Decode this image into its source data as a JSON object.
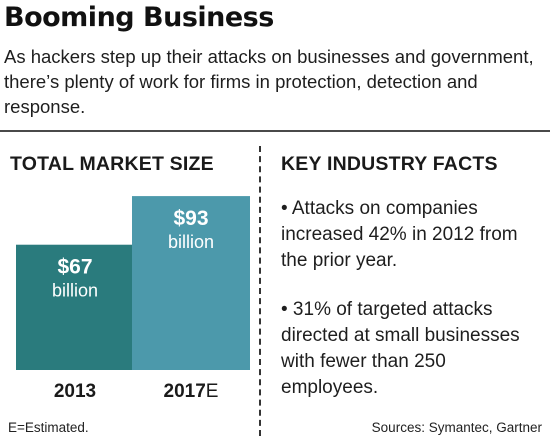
{
  "header": {
    "title": "Booming Business",
    "subtitle": "As hackers step up their attacks on businesses and government, there’s plenty of work for firms in protection, detection and response."
  },
  "left_section": {
    "heading": "TOTAL MARKET SIZE"
  },
  "right_section": {
    "heading": "KEY INDUSTRY FACTS",
    "facts": [
      "• Attacks on companies increased 42% in 2012 from the prior year.",
      "• 31% of targeted attacks directed at small businesses with fewer than 250 employees."
    ]
  },
  "footer": {
    "note": "E=Estimated.",
    "source": "Sources: Symantec, Gartner"
  },
  "colors": {
    "bar_2013": "#2a7b7d",
    "bar_2017": "#4c99ab",
    "text": "#1a1a1a"
  },
  "chart_data": {
    "type": "bar",
    "categories": [
      "2013",
      "2017E"
    ],
    "category_display": [
      {
        "main": "2013",
        "suffix": ""
      },
      {
        "main": "2017",
        "suffix": "E"
      }
    ],
    "values": [
      67,
      93
    ],
    "value_labels": [
      "$67",
      "$93"
    ],
    "unit_label": "billion",
    "title": "TOTAL MARKET SIZE",
    "xlabel": "",
    "ylabel": "",
    "grid": false
  }
}
